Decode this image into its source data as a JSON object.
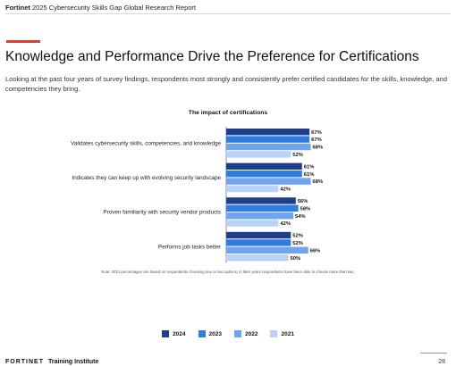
{
  "header": {
    "brand": "Fortinet",
    "report_title": "2025 Cybersecurity Skills Gap Global Research Report"
  },
  "page": {
    "title": "Knowledge and Performance Drive the Preference for Certifications",
    "intro": "Looking at the past four years of survey findings, respondents most strongly and consistently prefer certified candidates for the skills, knowledge, and competencies they bring.",
    "note": "Note: 2021 percentages are based on respondents choosing one or two options; in later years respondents have been able to choose more than two.",
    "page_number": "28"
  },
  "footer": {
    "logo_text": "FORTINET",
    "logo_suffix": "Training Institute"
  },
  "colors": {
    "accent": "#e8392f",
    "series": [
      "#1f3f8c",
      "#2f7de1",
      "#6ea4f0",
      "#b8d3f7"
    ]
  },
  "chart_data": {
    "type": "bar",
    "orientation": "horizontal",
    "title": "The impact of certifications",
    "categories": [
      "Validates cybersecurity skills, competencies, and knowledge",
      "Indicates they can keep up with evolving security landscape",
      "Proven familiarity with security vendor products",
      "Performs job tasks better"
    ],
    "series": [
      {
        "name": "2024",
        "values": [
          67,
          61,
          56,
          52
        ]
      },
      {
        "name": "2023",
        "values": [
          67,
          61,
          58,
          52
        ]
      },
      {
        "name": "2022",
        "values": [
          68,
          68,
          54,
          66
        ]
      },
      {
        "name": "2021",
        "values": [
          52,
          42,
          42,
          50
        ]
      }
    ],
    "value_suffix": "%",
    "xlim": [
      0,
      100
    ],
    "grid": false,
    "legend_position": "bottom"
  }
}
